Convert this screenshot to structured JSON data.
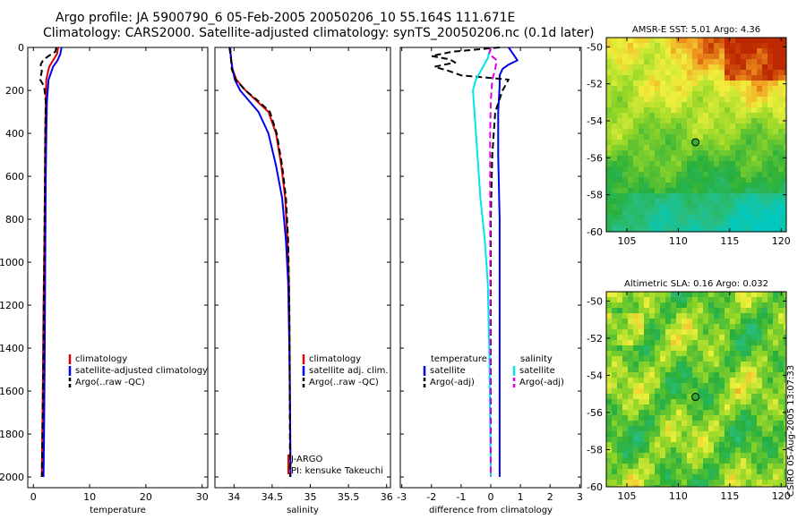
{
  "header": {
    "title_line1": "Argo profile: JA 5900790_6 05-Feb-2005 20050206_10 55.164S 111.671E",
    "title_line2": "Climatology: CARS2000. Satellite-adjusted climatology: synTS_20050206.nc (0.1d later)"
  },
  "credit": "CSIRO 05-Aug-2005 13:07:33",
  "colors": {
    "red": "#dd0000",
    "blue": "#0000ee",
    "black": "#000000",
    "cyan": "#00e5e5",
    "magenta": "#e000e0"
  },
  "chart_data": [
    {
      "id": "temperature",
      "type": "line",
      "xlabel": "temperature",
      "ylabel": "",
      "xlim": [
        -1,
        31
      ],
      "ylim": [
        2050,
        0
      ],
      "xticks": [
        0,
        10,
        20,
        30
      ],
      "xtick_labels": [
        "0",
        "10",
        "20",
        "30"
      ],
      "yticks": [
        0,
        200,
        400,
        600,
        800,
        1000,
        1200,
        1400,
        1600,
        1800,
        2000
      ],
      "ytick_labels": [
        "0",
        "200",
        "400",
        "600",
        "800",
        "1000",
        "1200",
        "1400",
        "1600",
        "1800",
        "2000"
      ],
      "legend": {
        "position": "lower-right",
        "entries": [
          "climatology",
          "satellite-adjusted climatology",
          "Argo(..raw -QC)"
        ]
      },
      "series": [
        {
          "name": "climatology",
          "color": "red",
          "dash": false,
          "x": [
            4.4,
            4.2,
            3.5,
            2.8,
            2.3,
            2.2,
            2.1,
            2.05,
            2.0,
            1.9,
            1.8,
            1.7,
            1.6,
            1.5
          ],
          "y": [
            0,
            30,
            60,
            90,
            150,
            250,
            400,
            600,
            800,
            1000,
            1200,
            1500,
            1800,
            2000
          ]
        },
        {
          "name": "satellite-adjusted climatology",
          "color": "blue",
          "dash": false,
          "x": [
            5.0,
            4.8,
            4.3,
            3.5,
            2.7,
            2.4,
            2.3,
            2.2,
            2.15,
            2.1,
            2.05,
            2.0,
            1.9,
            1.8
          ],
          "y": [
            0,
            30,
            60,
            90,
            150,
            250,
            400,
            600,
            800,
            1000,
            1200,
            1500,
            1800,
            2000
          ]
        },
        {
          "name": "Argo(..raw -QC)",
          "color": "black",
          "dash": true,
          "x": [
            4.1,
            3.9,
            2.7,
            1.7,
            1.3,
            1.5,
            1.2,
            1.9,
            2.2,
            2.1,
            2.05,
            2.0,
            1.95,
            1.85,
            1.75,
            1.6,
            1.5
          ],
          "y": [
            0,
            20,
            40,
            60,
            80,
            110,
            150,
            180,
            250,
            400,
            600,
            800,
            1000,
            1200,
            1500,
            1800,
            2000
          ]
        }
      ]
    },
    {
      "id": "salinity",
      "type": "line",
      "xlabel": "salinity",
      "ylabel": "",
      "xlim": [
        33.75,
        36.05
      ],
      "ylim": [
        2050,
        0
      ],
      "xticks": [
        34,
        34.5,
        35,
        35.5,
        36
      ],
      "xtick_labels": [
        "34",
        "34.5",
        "35",
        "35.5",
        "36"
      ],
      "legend": {
        "position": "lower-right",
        "entries": [
          "climatology",
          "satellite adj. clim.",
          "Argo(..raw -QC)"
        ]
      },
      "annotations": [
        "J-ARGO",
        "PI: kensuke Takeuchi"
      ],
      "series": [
        {
          "name": "climatology",
          "color": "red",
          "dash": false,
          "x": [
            33.95,
            33.96,
            33.98,
            34.03,
            34.15,
            34.3,
            34.45,
            34.55,
            34.62,
            34.67,
            34.7,
            34.72,
            34.73,
            34.735,
            34.74
          ],
          "y": [
            0,
            50,
            100,
            150,
            200,
            250,
            300,
            400,
            550,
            700,
            900,
            1100,
            1400,
            1700,
            2000
          ]
        },
        {
          "name": "satellite adj. clim.",
          "color": "blue",
          "dash": false,
          "x": [
            33.95,
            33.96,
            33.98,
            34.01,
            34.08,
            34.2,
            34.32,
            34.45,
            34.55,
            34.63,
            34.68,
            34.71,
            34.725,
            34.735,
            34.74
          ],
          "y": [
            0,
            50,
            100,
            150,
            200,
            250,
            300,
            400,
            550,
            700,
            900,
            1100,
            1400,
            1700,
            2000
          ]
        },
        {
          "name": "Argo(..raw -QC)",
          "color": "black",
          "dash": true,
          "x": [
            33.94,
            33.96,
            33.97,
            34.02,
            34.15,
            34.32,
            34.47,
            34.56,
            34.63,
            34.68,
            34.71,
            34.725,
            34.73,
            34.735
          ],
          "y": [
            0,
            50,
            100,
            150,
            200,
            250,
            300,
            400,
            550,
            700,
            900,
            1200,
            1600,
            2000
          ]
        }
      ]
    },
    {
      "id": "difference",
      "type": "line",
      "xlabel": "difference from climatology",
      "ylabel": "",
      "xlim": [
        -3.05,
        3.05
      ],
      "ylim": [
        2050,
        0
      ],
      "xticks": [
        -3,
        -2,
        -1,
        0,
        1,
        2,
        3
      ],
      "xtick_labels": [
        "-3",
        "-2",
        "-1",
        "0",
        "1",
        "2",
        "3"
      ],
      "legend": {
        "position": "lower-center",
        "entries": [
          "temperature",
          "satellite",
          "Argo(-adj)",
          "salinity",
          "satellite",
          "Argo(-adj)"
        ]
      },
      "series": [
        {
          "name": "temperature satellite",
          "color": "blue",
          "dash": false,
          "x": [
            0.6,
            0.8,
            0.9,
            0.6,
            0.4,
            0.3,
            0.3,
            0.25,
            0.25,
            0.3,
            0.3,
            0.3
          ],
          "y": [
            0,
            40,
            60,
            80,
            100,
            130,
            180,
            300,
            500,
            800,
            1200,
            2000
          ]
        },
        {
          "name": "temperature Argo(-adj)",
          "color": "black",
          "dash": true,
          "x": [
            0.3,
            -1.3,
            -2.0,
            -1.4,
            -1.2,
            -1.9,
            -1.4,
            -1.0,
            0.6,
            0.4,
            0.15,
            0.05,
            0.0,
            0.0
          ],
          "y": [
            0,
            20,
            40,
            55,
            70,
            90,
            110,
            130,
            150,
            200,
            300,
            500,
            800,
            2000
          ]
        },
        {
          "name": "salinity satellite",
          "color": "cyan",
          "dash": false,
          "x": [
            0,
            -0.1,
            -0.3,
            -0.5,
            -0.6,
            -0.55,
            -0.45,
            -0.35,
            -0.2,
            -0.1,
            -0.05,
            0.0
          ],
          "y": [
            0,
            50,
            100,
            150,
            200,
            300,
            500,
            700,
            900,
            1100,
            1400,
            2000
          ]
        },
        {
          "name": "salinity Argo(-adj)",
          "color": "magenta",
          "dash": true,
          "x": [
            0.0,
            -0.05,
            0.2,
            0.15,
            0.05,
            0.0,
            -0.02,
            -0.02,
            0.0
          ],
          "y": [
            0,
            30,
            60,
            100,
            150,
            250,
            400,
            800,
            2000
          ]
        }
      ]
    },
    {
      "id": "sst_map",
      "type": "heatmap",
      "title": "AMSR-E SST: 5.01 Argo: 4.36",
      "xlim": [
        103,
        120.5
      ],
      "ylim": [
        -60,
        -49.5
      ],
      "xticks": [
        105,
        110,
        115,
        120
      ],
      "xtick_labels": [
        "105",
        "110",
        "115",
        "120"
      ],
      "yticks": [
        -50,
        -52,
        -54,
        -56,
        -58,
        -60
      ],
      "ytick_labels": [
        "-50",
        "-52",
        "-54",
        "-56",
        "-58",
        "-60"
      ],
      "marker": {
        "lon": 111.67,
        "lat": -55.16
      }
    },
    {
      "id": "sla_map",
      "type": "heatmap",
      "title": "Altimetric SLA: 0.16 Argo: 0.032",
      "xlim": [
        103,
        120.5
      ],
      "ylim": [
        -60,
        -49.5
      ],
      "xticks": [
        105,
        110,
        115,
        120
      ],
      "xtick_labels": [
        "105",
        "110",
        "115",
        "120"
      ],
      "yticks": [
        -50,
        -52,
        -54,
        -56,
        -58,
        -60
      ],
      "ytick_labels": [
        "-50",
        "-52",
        "-54",
        "-56",
        "-58",
        "-60"
      ],
      "marker": {
        "lon": 111.67,
        "lat": -55.16
      }
    }
  ]
}
